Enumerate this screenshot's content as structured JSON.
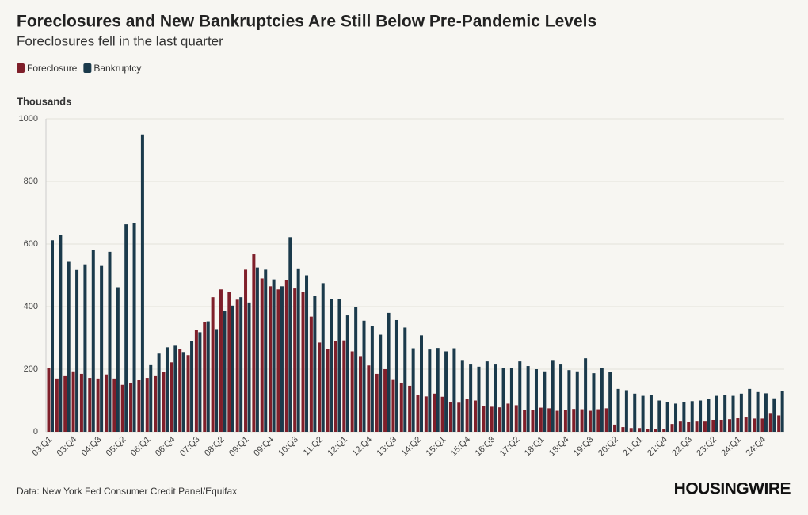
{
  "chart_data": {
    "type": "bar",
    "title": "Foreclosures and New Bankruptcies Are Still Below Pre-Pandemic Levels",
    "subtitle": "Foreclosures fell in the last quarter",
    "y_axis_label": "Thousands",
    "source": "Data: New York Fed Consumer Credit Panel/Equifax",
    "brand": "HOUSINGWIRE",
    "categories": [
      "03:Q1",
      null,
      null,
      "03:Q4",
      null,
      null,
      "04:Q3",
      null,
      null,
      "05:Q2",
      null,
      null,
      "06:Q1",
      null,
      null,
      "06:Q4",
      null,
      null,
      "07:Q3",
      null,
      null,
      "08:Q2",
      null,
      null,
      "09:Q1",
      null,
      null,
      "09:Q4",
      null,
      null,
      "10:Q3",
      null,
      null,
      "11:Q2",
      null,
      null,
      "12:Q1",
      null,
      null,
      "12:Q4",
      null,
      null,
      "13:Q3",
      null,
      null,
      "14:Q2",
      null,
      null,
      "15:Q1",
      null,
      null,
      "15:Q4",
      null,
      null,
      "16:Q3",
      null,
      null,
      "17:Q2",
      null,
      null,
      "18:Q1",
      null,
      null,
      "18:Q4",
      null,
      null,
      "19:Q3",
      null,
      null,
      "20:Q2",
      null,
      null,
      "21:Q1",
      null,
      null,
      "21:Q4",
      null,
      null,
      "22:Q3",
      null,
      null,
      "23:Q2",
      null,
      null,
      "24:Q1",
      null,
      null,
      "24:Q4",
      null,
      null
    ],
    "series": [
      {
        "name": "Foreclosure",
        "color": "#7f1f2a",
        "values": [
          205,
          170,
          180,
          193,
          185,
          172,
          170,
          183,
          170,
          150,
          157,
          167,
          172,
          180,
          190,
          222,
          265,
          245,
          325,
          350,
          430,
          455,
          447,
          422,
          518,
          567,
          490,
          465,
          455,
          485,
          458,
          447,
          368,
          285,
          265,
          290,
          292,
          257,
          242,
          212,
          185,
          200,
          168,
          157,
          147,
          117,
          113,
          122,
          112,
          95,
          93,
          105,
          100,
          83,
          80,
          78,
          90,
          85,
          70,
          70,
          77,
          75,
          67,
          70,
          73,
          72,
          67,
          72,
          75,
          23,
          15,
          12,
          12,
          8,
          10,
          10,
          25,
          35,
          32,
          35,
          35,
          38,
          38,
          40,
          43,
          48,
          42,
          42,
          60,
          52
        ]
      },
      {
        "name": "Bankruptcy",
        "color": "#1b3a4b",
        "values": [
          612,
          630,
          543,
          517,
          535,
          580,
          530,
          575,
          462,
          663,
          668,
          950,
          213,
          250,
          270,
          275,
          255,
          290,
          318,
          353,
          328,
          385,
          403,
          430,
          413,
          525,
          518,
          487,
          465,
          622,
          522,
          500,
          435,
          475,
          425,
          425,
          372,
          400,
          355,
          337,
          310,
          380,
          357,
          333,
          267,
          308,
          263,
          268,
          257,
          267,
          227,
          215,
          208,
          225,
          215,
          205,
          205,
          225,
          210,
          200,
          193,
          227,
          215,
          197,
          193,
          235,
          187,
          203,
          190,
          137,
          133,
          122,
          115,
          118,
          100,
          95,
          90,
          95,
          98,
          100,
          105,
          115,
          117,
          115,
          122,
          137,
          127,
          123,
          107,
          130
        ]
      }
    ],
    "ylim": [
      0,
      1000
    ],
    "yticks": [
      0,
      200,
      400,
      600,
      800,
      1000
    ],
    "grid": true,
    "legend": "top-left"
  }
}
